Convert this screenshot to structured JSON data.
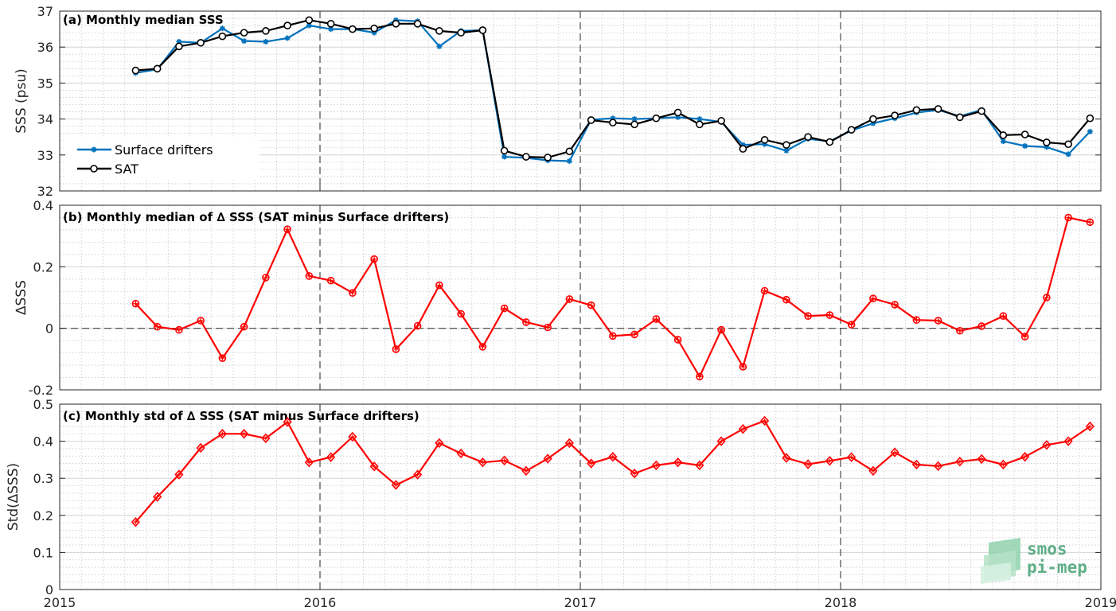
{
  "chart_data": [
    {
      "type": "line",
      "title": "(a) Monthly median SSS",
      "ylabel": "SSS (psu)",
      "xlim": [
        2015,
        2019
      ],
      "ylim": [
        32,
        37
      ],
      "yticks": [
        32,
        33,
        34,
        35,
        36,
        37
      ],
      "grid": true,
      "legend_position": "left",
      "series": [
        {
          "name": "Surface drifters",
          "color": "#0072bd",
          "marker": "asterisk",
          "x": [
            2015.2917,
            2015.375,
            2015.4583,
            2015.5417,
            2015.625,
            2015.7083,
            2015.7917,
            2015.875,
            2015.9583,
            2016.0417,
            2016.125,
            2016.2083,
            2016.2917,
            2016.375,
            2016.4583,
            2016.5417,
            2016.625,
            2016.7083,
            2016.7917,
            2016.875,
            2016.9583,
            2017.0417,
            2017.125,
            2017.2083,
            2017.2917,
            2017.375,
            2017.4583,
            2017.5417,
            2017.625,
            2017.7083,
            2017.7917,
            2017.875,
            2017.9583,
            2018.0417,
            2018.125,
            2018.2083,
            2018.2917,
            2018.375,
            2018.4583,
            2018.5417,
            2018.625,
            2018.7083,
            2018.7917,
            2018.875,
            2018.9583
          ],
          "y": [
            35.28,
            35.38,
            36.15,
            36.12,
            36.52,
            36.17,
            36.15,
            36.25,
            36.6,
            36.5,
            36.5,
            36.4,
            36.75,
            36.72,
            36.02,
            36.45,
            36.47,
            32.95,
            32.92,
            32.85,
            32.83,
            33.98,
            34.02,
            34.0,
            34.02,
            34.05,
            34.0,
            33.92,
            33.28,
            33.3,
            33.12,
            33.45,
            33.38,
            33.68,
            33.88,
            34.02,
            34.18,
            34.25,
            34.08,
            34.25,
            33.38,
            33.25,
            33.22,
            33.02,
            33.65
          ]
        },
        {
          "name": "SAT",
          "color": "#000000",
          "marker": "circle",
          "x": [
            2015.2917,
            2015.375,
            2015.4583,
            2015.5417,
            2015.625,
            2015.7083,
            2015.7917,
            2015.875,
            2015.9583,
            2016.0417,
            2016.125,
            2016.2083,
            2016.2917,
            2016.375,
            2016.4583,
            2016.5417,
            2016.625,
            2016.7083,
            2016.7917,
            2016.875,
            2016.9583,
            2017.0417,
            2017.125,
            2017.2083,
            2017.2917,
            2017.375,
            2017.4583,
            2017.5417,
            2017.625,
            2017.7083,
            2017.7917,
            2017.875,
            2017.9583,
            2018.0417,
            2018.125,
            2018.2083,
            2018.2917,
            2018.375,
            2018.4583,
            2018.5417,
            2018.625,
            2018.7083,
            2018.7917,
            2018.875,
            2018.9583
          ],
          "y": [
            35.35,
            35.4,
            36.02,
            36.12,
            36.3,
            36.4,
            36.45,
            36.6,
            36.75,
            36.65,
            36.5,
            36.52,
            36.65,
            36.65,
            36.45,
            36.4,
            36.47,
            33.12,
            32.95,
            32.93,
            33.1,
            33.97,
            33.9,
            33.85,
            34.02,
            34.18,
            33.85,
            33.95,
            33.17,
            33.42,
            33.28,
            33.5,
            33.36,
            33.7,
            34.0,
            34.1,
            34.25,
            34.28,
            34.05,
            34.22,
            33.55,
            33.57,
            33.35,
            33.3,
            34.02
          ]
        }
      ]
    },
    {
      "type": "line",
      "title": "(b) Monthly median of ∆ SSS (SAT minus Surface drifters)",
      "ylabel": "∆SSS",
      "xlim": [
        2015,
        2019
      ],
      "ylim": [
        -0.2,
        0.4
      ],
      "yticks": [
        -0.2,
        0,
        0.2,
        0.4
      ],
      "ytick_labels": [
        "-0.2",
        "0",
        "0.2",
        "0.4"
      ],
      "grid": true,
      "series": [
        {
          "color": "#ff0000",
          "marker": "circle",
          "x": [
            2015.2917,
            2015.375,
            2015.4583,
            2015.5417,
            2015.625,
            2015.7083,
            2015.7917,
            2015.875,
            2015.9583,
            2016.0417,
            2016.125,
            2016.2083,
            2016.2917,
            2016.375,
            2016.4583,
            2016.5417,
            2016.625,
            2016.7083,
            2016.7917,
            2016.875,
            2016.9583,
            2017.0417,
            2017.125,
            2017.2083,
            2017.2917,
            2017.375,
            2017.4583,
            2017.5417,
            2017.625,
            2017.7083,
            2017.7917,
            2017.875,
            2017.9583,
            2018.0417,
            2018.125,
            2018.2083,
            2018.2917,
            2018.375,
            2018.4583,
            2018.5417,
            2018.625,
            2018.7083,
            2018.7917,
            2018.875,
            2018.9583
          ],
          "y": [
            0.08,
            0.005,
            -0.005,
            0.025,
            -0.097,
            0.005,
            0.165,
            0.322,
            0.17,
            0.155,
            0.115,
            0.225,
            -0.068,
            0.008,
            0.14,
            0.047,
            -0.06,
            0.065,
            0.02,
            0.003,
            0.095,
            0.075,
            -0.025,
            -0.02,
            0.03,
            -0.037,
            -0.157,
            -0.005,
            -0.125,
            0.122,
            0.093,
            0.04,
            0.043,
            0.012,
            0.097,
            0.077,
            0.027,
            0.025,
            -0.008,
            0.007,
            0.04,
            -0.027,
            0.1,
            0.36,
            0.345
          ]
        }
      ]
    },
    {
      "type": "line",
      "title": "(c) Monthly std of ∆ SSS (SAT minus Surface drifters)",
      "ylabel": "Std(∆SSS)",
      "xlabel": "",
      "xlim": [
        2015,
        2019
      ],
      "xticks": [
        2015,
        2016,
        2017,
        2018,
        2019
      ],
      "xtick_labels": [
        "2015",
        "2016",
        "2017",
        "2018",
        "2019"
      ],
      "ylim": [
        0,
        0.5
      ],
      "yticks": [
        0,
        0.1,
        0.2,
        0.3,
        0.4,
        0.5
      ],
      "ytick_labels": [
        "0",
        "0.1",
        "0.2",
        "0.3",
        "0.4",
        "0.5"
      ],
      "grid": true,
      "series": [
        {
          "color": "#ff0000",
          "marker": "diamond",
          "x": [
            2015.2917,
            2015.375,
            2015.4583,
            2015.5417,
            2015.625,
            2015.7083,
            2015.7917,
            2015.875,
            2015.9583,
            2016.0417,
            2016.125,
            2016.2083,
            2016.2917,
            2016.375,
            2016.4583,
            2016.5417,
            2016.625,
            2016.7083,
            2016.7917,
            2016.875,
            2016.9583,
            2017.0417,
            2017.125,
            2017.2083,
            2017.2917,
            2017.375,
            2017.4583,
            2017.5417,
            2017.625,
            2017.7083,
            2017.7917,
            2017.875,
            2017.9583,
            2018.0417,
            2018.125,
            2018.2083,
            2018.2917,
            2018.375,
            2018.4583,
            2018.5417,
            2018.625,
            2018.7083,
            2018.7917,
            2018.875,
            2018.9583
          ],
          "y": [
            0.182,
            0.25,
            0.31,
            0.382,
            0.42,
            0.42,
            0.408,
            0.452,
            0.343,
            0.357,
            0.412,
            0.332,
            0.282,
            0.31,
            0.395,
            0.367,
            0.343,
            0.348,
            0.32,
            0.353,
            0.395,
            0.34,
            0.358,
            0.313,
            0.335,
            0.343,
            0.335,
            0.4,
            0.433,
            0.455,
            0.355,
            0.338,
            0.347,
            0.357,
            0.32,
            0.37,
            0.337,
            0.333,
            0.345,
            0.352,
            0.337,
            0.358,
            0.39,
            0.4,
            0.44
          ]
        }
      ]
    }
  ],
  "logo": {
    "line1": "smos",
    "line2": "pi-mep"
  }
}
